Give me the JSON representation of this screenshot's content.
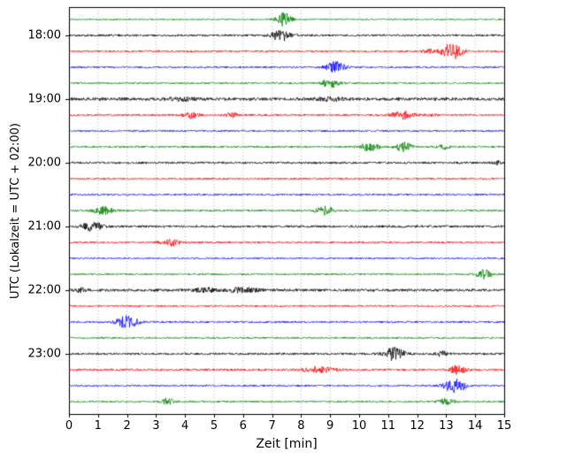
{
  "figure": {
    "xlabel": "Zeit  [min]",
    "ylabel": "UTC (Lokalzeit = UTC + 02:00)"
  },
  "chart_data": {
    "type": "line",
    "subtype": "helicorder-seismogram",
    "title": "",
    "xlabel": "Zeit  [min]",
    "ylabel": "UTC (Lokalzeit = UTC + 02:00)",
    "x_range": [
      0,
      15
    ],
    "x_ticks": [
      0,
      1,
      2,
      3,
      4,
      5,
      6,
      7,
      8,
      9,
      10,
      11,
      12,
      13,
      14,
      15
    ],
    "grid": "vertical-dotted",
    "colors_cycle": [
      "#000000",
      "#ff0000",
      "#0000ff",
      "#008000"
    ],
    "hour_rows": [
      {
        "row": 1,
        "label": "18:00"
      },
      {
        "row": 5,
        "label": "19:00"
      },
      {
        "row": 9,
        "label": "20:00"
      },
      {
        "row": 13,
        "label": "21:00"
      },
      {
        "row": 17,
        "label": "22:00"
      },
      {
        "row": 21,
        "label": "23:00"
      }
    ],
    "traces": [
      {
        "start": "17:45",
        "color": "#008000",
        "base": 0.8,
        "events": [
          {
            "t": 7.4,
            "amp": 8,
            "w": 0.35
          }
        ]
      },
      {
        "start": "18:00",
        "color": "#000000",
        "base": 1.2,
        "events": [
          {
            "t": 7.3,
            "amp": 6,
            "w": 0.45
          }
        ]
      },
      {
        "start": "18:15",
        "color": "#ff0000",
        "base": 1.1,
        "events": [
          {
            "t": 12.35,
            "amp": 2.5,
            "w": 0.25
          },
          {
            "t": 13.2,
            "amp": 9,
            "w": 0.5
          }
        ]
      },
      {
        "start": "18:30",
        "color": "#0000ff",
        "base": 1.0,
        "events": [
          {
            "t": 9.2,
            "amp": 6,
            "w": 0.45
          }
        ]
      },
      {
        "start": "18:45",
        "color": "#008000",
        "base": 1.0,
        "events": [
          {
            "t": 9.0,
            "amp": 5,
            "w": 0.4
          }
        ]
      },
      {
        "start": "19:00",
        "color": "#000000",
        "base": 1.7,
        "events": [
          {
            "t": 3.8,
            "amp": 1.5,
            "w": 0.8
          },
          {
            "t": 9.0,
            "amp": 1.5,
            "w": 0.7
          }
        ]
      },
      {
        "start": "19:15",
        "color": "#ff0000",
        "base": 1.1,
        "events": [
          {
            "t": 4.2,
            "amp": 3.5,
            "w": 0.35
          },
          {
            "t": 5.6,
            "amp": 2.5,
            "w": 0.3
          },
          {
            "t": 11.5,
            "amp": 4.5,
            "w": 0.5
          },
          {
            "t": 12.5,
            "amp": 2,
            "w": 0.25
          }
        ]
      },
      {
        "start": "19:30",
        "color": "#0000ff",
        "base": 1.0,
        "events": []
      },
      {
        "start": "19:45",
        "color": "#008000",
        "base": 1.1,
        "events": [
          {
            "t": 10.35,
            "amp": 4.5,
            "w": 0.45
          },
          {
            "t": 11.5,
            "amp": 5.5,
            "w": 0.4
          },
          {
            "t": 12.9,
            "amp": 2.5,
            "w": 0.3
          }
        ]
      },
      {
        "start": "20:00",
        "color": "#000000",
        "base": 1.2,
        "events": [
          {
            "t": 14.75,
            "amp": 2.5,
            "w": 0.2
          }
        ]
      },
      {
        "start": "20:15",
        "color": "#ff0000",
        "base": 1.0,
        "events": []
      },
      {
        "start": "20:30",
        "color": "#0000ff",
        "base": 1.0,
        "events": []
      },
      {
        "start": "20:45",
        "color": "#008000",
        "base": 1.1,
        "events": [
          {
            "t": 1.2,
            "amp": 4.5,
            "w": 0.45
          },
          {
            "t": 8.8,
            "amp": 4.5,
            "w": 0.45
          }
        ]
      },
      {
        "start": "21:00",
        "color": "#000000",
        "base": 1.3,
        "events": [
          {
            "t": 0.8,
            "amp": 5.5,
            "w": 0.45
          }
        ]
      },
      {
        "start": "21:15",
        "color": "#ff0000",
        "base": 1.1,
        "events": [
          {
            "t": 3.5,
            "amp": 4,
            "w": 0.45
          }
        ]
      },
      {
        "start": "21:30",
        "color": "#0000ff",
        "base": 0.9,
        "events": []
      },
      {
        "start": "21:45",
        "color": "#008000",
        "base": 1.0,
        "events": [
          {
            "t": 14.3,
            "amp": 5,
            "w": 0.4
          }
        ]
      },
      {
        "start": "22:00",
        "color": "#000000",
        "base": 1.5,
        "events": [
          {
            "t": 0.4,
            "amp": 2,
            "w": 0.25
          },
          {
            "t": 4.7,
            "amp": 2.5,
            "w": 0.5
          },
          {
            "t": 6.0,
            "amp": 2.8,
            "w": 0.7
          }
        ]
      },
      {
        "start": "22:15",
        "color": "#ff0000",
        "base": 1.0,
        "events": []
      },
      {
        "start": "22:30",
        "color": "#0000ff",
        "base": 1.0,
        "events": [
          {
            "t": 2.0,
            "amp": 7,
            "w": 0.5
          }
        ]
      },
      {
        "start": "22:45",
        "color": "#008000",
        "base": 1.0,
        "events": []
      },
      {
        "start": "23:00",
        "color": "#000000",
        "base": 1.2,
        "events": [
          {
            "t": 11.2,
            "amp": 7,
            "w": 0.5
          },
          {
            "t": 12.85,
            "amp": 2.5,
            "w": 0.3
          }
        ]
      },
      {
        "start": "23:15",
        "color": "#ff0000",
        "base": 1.2,
        "events": [
          {
            "t": 8.6,
            "amp": 3,
            "w": 0.8
          },
          {
            "t": 13.4,
            "amp": 4.5,
            "w": 0.4
          }
        ]
      },
      {
        "start": "23:30",
        "color": "#0000ff",
        "base": 1.0,
        "events": [
          {
            "t": 13.3,
            "amp": 8,
            "w": 0.5
          }
        ]
      },
      {
        "start": "23:45",
        "color": "#008000",
        "base": 1.0,
        "events": [
          {
            "t": 3.4,
            "amp": 3.5,
            "w": 0.3
          },
          {
            "t": 13.0,
            "amp": 3,
            "w": 0.4
          }
        ]
      }
    ]
  }
}
